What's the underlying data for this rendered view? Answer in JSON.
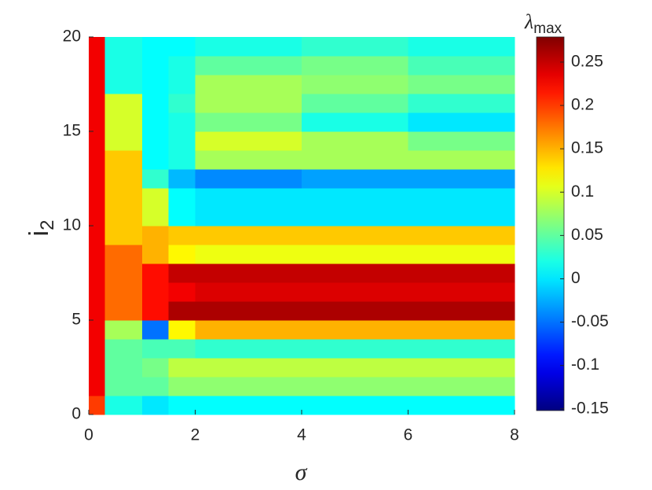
{
  "chart_data": {
    "type": "heatmap",
    "xlabel": "σ",
    "ylabel": "i",
    "ylabel_sub": "2",
    "colorbar_label": "λ",
    "colorbar_label_sub": "max",
    "colormap": "jet",
    "x_edges": [
      0,
      0.3,
      1,
      1.5,
      2,
      4,
      6,
      8
    ],
    "y_edges": [
      0,
      1,
      2,
      3,
      4,
      5,
      6,
      7,
      8,
      9,
      10,
      11,
      12,
      13,
      14,
      15,
      16,
      17,
      18,
      19,
      20
    ],
    "z": [
      [
        0.2,
        0.02,
        0.0,
        0.01,
        0.01,
        0.01,
        0.01
      ],
      [
        0.23,
        0.05,
        0.05,
        0.07,
        0.07,
        0.07,
        0.07
      ],
      [
        0.23,
        0.05,
        0.06,
        0.09,
        0.09,
        0.09,
        0.09
      ],
      [
        0.23,
        0.05,
        0.04,
        0.04,
        0.03,
        0.03,
        0.03
      ],
      [
        0.23,
        0.08,
        -0.05,
        0.12,
        0.15,
        0.15,
        0.15
      ],
      [
        0.23,
        0.18,
        0.22,
        0.26,
        0.26,
        0.26,
        0.26
      ],
      [
        0.23,
        0.18,
        0.22,
        0.23,
        0.24,
        0.24,
        0.24
      ],
      [
        0.23,
        0.18,
        0.22,
        0.25,
        0.25,
        0.25,
        0.25
      ],
      [
        0.23,
        0.18,
        0.15,
        0.12,
        0.11,
        0.11,
        0.11
      ],
      [
        0.23,
        0.14,
        0.15,
        0.14,
        0.14,
        0.14,
        0.14
      ],
      [
        0.23,
        0.14,
        0.1,
        0.01,
        0.0,
        0.0,
        0.0
      ],
      [
        0.23,
        0.14,
        0.1,
        0.01,
        0.0,
        0.0,
        0.0
      ],
      [
        0.23,
        0.14,
        0.03,
        -0.02,
        -0.04,
        -0.03,
        -0.03
      ],
      [
        0.23,
        0.14,
        0.01,
        0.02,
        0.08,
        0.08,
        0.08
      ],
      [
        0.23,
        0.1,
        0.01,
        0.02,
        0.1,
        0.08,
        0.06
      ],
      [
        0.23,
        0.1,
        0.01,
        0.02,
        0.06,
        0.02,
        0.0
      ],
      [
        0.23,
        0.1,
        0.01,
        0.03,
        0.08,
        0.05,
        0.03
      ],
      [
        0.23,
        0.02,
        0.01,
        0.02,
        0.08,
        0.07,
        0.06
      ],
      [
        0.23,
        0.02,
        0.01,
        0.02,
        0.05,
        0.06,
        0.04
      ],
      [
        0.23,
        0.02,
        0.01,
        0.01,
        0.02,
        0.03,
        0.02
      ]
    ],
    "xlim": [
      0,
      8
    ],
    "xticks": [
      0,
      2,
      4,
      6,
      8
    ],
    "ylim": [
      0,
      20
    ],
    "yticks": [
      0,
      5,
      10,
      15,
      20
    ],
    "clim": [
      -0.152,
      0.279
    ],
    "cticks": [
      -0.15,
      -0.1,
      -0.05,
      0,
      0.05,
      0.1,
      0.15,
      0.2,
      0.25
    ]
  }
}
